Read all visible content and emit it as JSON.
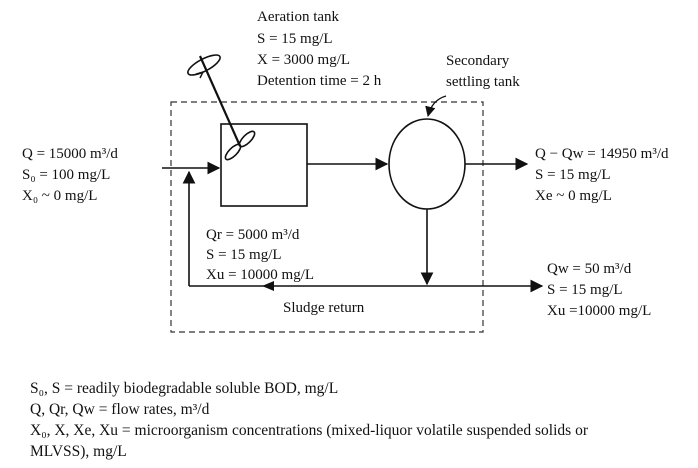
{
  "aeration": {
    "title": "Aeration tank",
    "s": "S = 15 mg/L",
    "x": "X = 3000 mg/L",
    "detention": "Detention time = 2 h"
  },
  "settling": {
    "line1": "Secondary",
    "line2": "settling tank"
  },
  "influent": {
    "q": "Q = 15000 m³/d",
    "s0": "S₀ = 100 mg/L",
    "x0": "X₀ ~ 0 mg/L"
  },
  "effluent": {
    "q": "Q − Qw = 14950 m³/d",
    "s": "S = 15 mg/L",
    "xe": "Xe ~ 0 mg/L"
  },
  "recycle": {
    "qr": "Qr = 5000 m³/d",
    "s": "S = 15 mg/L",
    "xu": "Xu = 10000 mg/L"
  },
  "waste": {
    "qw": "Qw = 50 m³/d",
    "s": "S = 15 mg/L",
    "xu": "Xu =10000 mg/L"
  },
  "sludge_return": "Sludge return",
  "legend": {
    "line1": "S₀, S = readily biodegradable soluble BOD, mg/L",
    "line2": "Q, Qr, Qw = flow rates, m³/d",
    "line3": "X₀, X, Xe, Xu = microorganism concentrations (mixed-liquor volatile suspended solids or",
    "line4": "MLVSS), mg/L"
  }
}
